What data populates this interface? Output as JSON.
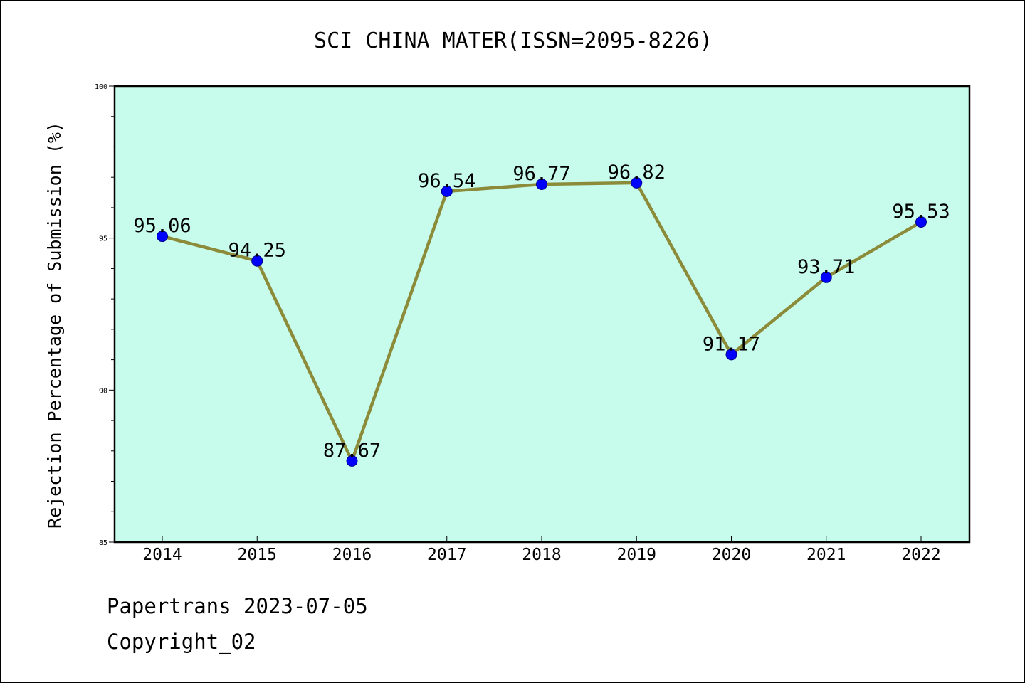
{
  "footer": {
    "date_line": "Papertrans 2023-07-05",
    "copyright_line": "Copyright_02"
  },
  "chart_data": {
    "type": "line",
    "title": "SCI CHINA MATER(ISSN=2095-8226)",
    "xlabel": "",
    "ylabel": "Rejection Percentage of Submission (%)",
    "categories": [
      "2014",
      "2015",
      "2016",
      "2017",
      "2018",
      "2019",
      "2020",
      "2021",
      "2022"
    ],
    "series": [
      {
        "values": [
          95.06,
          94.25,
          87.67,
          96.54,
          96.77,
          96.82,
          91.17,
          93.71,
          95.53
        ],
        "labels": [
          "95.06",
          "94.25",
          "87.67",
          "96.54",
          "96.77",
          "96.82",
          "91.17",
          "93.71",
          "95.53"
        ]
      }
    ],
    "ylim": [
      85,
      100
    ],
    "yticks": [
      85,
      90,
      95,
      100
    ],
    "ytick_labels": [
      "85",
      "90",
      "95",
      "100"
    ],
    "grid": false,
    "legend": "none",
    "colors": {
      "plot_background": "#c7fcec",
      "line": "#8b8b3a",
      "marker": "#0000ff",
      "marker_edge": "#00008b"
    }
  }
}
